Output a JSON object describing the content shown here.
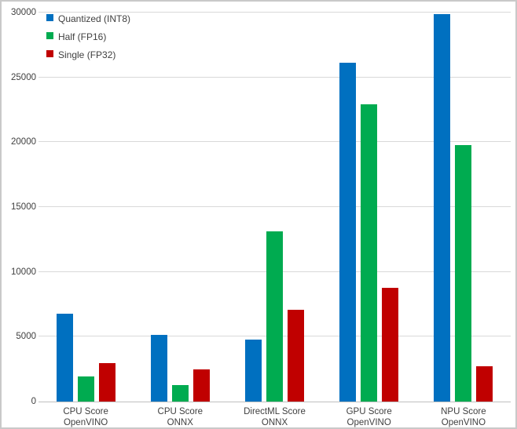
{
  "chart_data": {
    "type": "bar",
    "title": "",
    "xlabel": "",
    "ylabel": "",
    "ylim": [
      0,
      30000
    ],
    "ytick_step": 5000,
    "yticks": [
      0,
      5000,
      10000,
      15000,
      20000,
      25000,
      30000
    ],
    "grid": true,
    "legend_position": "top-left",
    "categories": [
      {
        "line1": "CPU Score",
        "line2": "OpenVINO"
      },
      {
        "line1": "CPU Score",
        "line2": "ONNX"
      },
      {
        "line1": "DirectML Score",
        "line2": "ONNX"
      },
      {
        "line1": "GPU Score",
        "line2": "OpenVINO"
      },
      {
        "line1": "NPU Score",
        "line2": "OpenVINO"
      }
    ],
    "series": [
      {
        "name": "Quantized (INT8)",
        "color": "#0070C0",
        "values": [
          6800,
          5150,
          4800,
          26100,
          29900
        ]
      },
      {
        "name": "Half (FP16)",
        "color": "#00AB50",
        "values": [
          1950,
          1250,
          13150,
          22900,
          19800
        ]
      },
      {
        "name": "Single (FP32)",
        "color": "#C00000",
        "values": [
          2950,
          2500,
          7100,
          8800,
          2750
        ]
      }
    ]
  },
  "colors": {
    "gridline": "#d9d9d9",
    "axis_line": "#bfbfbf",
    "frame_border": "#c9c9c9",
    "text": "#404040",
    "background": "#ffffff"
  }
}
